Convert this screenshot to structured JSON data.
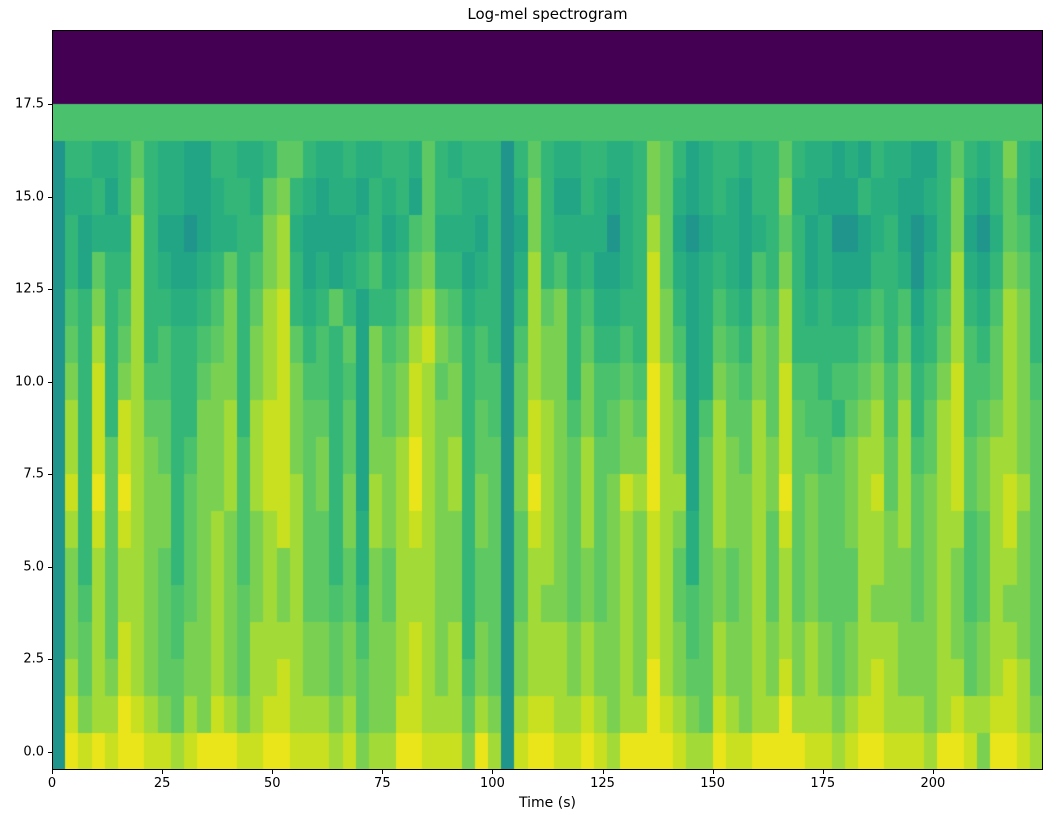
{
  "figure": {
    "background": "#ffffff",
    "text_color": "#000000"
  },
  "chart_data": {
    "type": "heatmap",
    "title": "Log-mel spectrogram",
    "xlabel": "Time (s)",
    "ylabel": "",
    "colormap": "viridis",
    "x_range": [
      0,
      225
    ],
    "y_range": [
      -0.5,
      19.5
    ],
    "x_tick_values": [
      0,
      25,
      50,
      75,
      100,
      125,
      150,
      175,
      200
    ],
    "x_tick_labels": [
      "0",
      "25",
      "50",
      "75",
      "100",
      "125",
      "150",
      "175",
      "200"
    ],
    "y_tick_values": [
      0,
      2.5,
      5,
      7.5,
      10,
      12.5,
      15,
      17.5
    ],
    "y_tick_labels": [
      "0.0",
      "2.5",
      "5.0",
      "7.5",
      "10.0",
      "12.5",
      "15.0",
      "17.5"
    ],
    "grid_on": false,
    "legend": "none",
    "n_mel_bands": 20,
    "n_time_bins": 75,
    "time_bin_seconds": 3,
    "value_encoding": "one hex digit per cell, 0 = min (dark purple) to f = max (bright yellow); rows listed from top (mel band 19) down to bottom (mel band 0)",
    "palette_low_to_high": [
      "#440154",
      "#46327e",
      "#3f4889",
      "#365c8d",
      "#2e6e8e",
      "#277f8e",
      "#1f958b",
      "#21a585",
      "#29af7f",
      "#34b679",
      "#4ac16d",
      "#5ec962",
      "#7ad151",
      "#a2da37",
      "#c8e020",
      "#e9e51a"
    ],
    "notable_features": {
      "top_two_bands": "constant minimum (dark purple), mel bands 18-19",
      "band_17": "constant mid-green value a",
      "onset_column": "dark teal column at t = 0-2 s across all active bands",
      "quiet_stripe": "dark teal vertical stripe at t = 103 s across all active bands",
      "bottom_band": "near-maximum bright yellow for most of the duration"
    },
    "rows_top_to_bottom": [
      "000000000000000000000000000000000000000000000000000000000000000000000000000",
      "000000000000000000000000000000000000000000000000000000000000000000000000000",
      "aaaaaaaaaaaaaaaaaaaaaaaaaaaaaaaaaaaaaaaaaaaaaaaaaaaaaaaaaaaaaaaaaaaaaaaaaaa",
      "699889b9887799889bb988988998b9899969b98899889cb97899899b988787988779b989c98",
      "688979c988778998bc9878879897b9988968c97798789cb87898799c887779887789c879b97",
      "697888d977678899cd877778978ab8887967c98888689db76788789b978667897679c768ba8",
      "697b99d987789b9acd978789a89bc9978968d9a897789eb878987a9c978777998689d879cb9",
      "6a9c9ad99889ac9bde989b9799acdba89969dbc9a8899ec978a98bad989889a9a79ad98adc9",
      "6b9d9bd9a99abc9cdeb9a9b7cabdecb9a96adcc9b99a9eca78ba9cbd99999ab9b89bda9bdc9",
      "6c9e9cdaa99bcc9cdecaa9a7cbcedbc9aa6bdcc9caabafdb78cbacbeaa9aabcac9aceaabdca",
      "6d9e9edbb99ccd9deecbb9b7cbcedcc9ba6bedcacabcbfdc7adbbdbebaa9bcdad9bdeabcdcb",
      "6d9ebedcb9accdadeecbc9b7ccdfdcd9bb6cedcbdbbccfdc7bdcbdcebbabcddbdabdebcddcb",
      "6e9fbfdcc9bccdadeedbc9c7dcdfdcd9cb6cfdcbdbcedfdd7bdccdcfbcbbcdebdbcdebcdedb",
      "6d9ebedcc9bcdcacdedbb9c8dcdedcc9cb6bedcbdbcdcedc8bdccdbebcbbcddcdbcddabdecb",
      "6c9dbddcb9bcdcacdcdbb9b8cbdddcc9bb6bddcbcbcdcedb8bcbcdbdbcbbbddccbcdcabddcb",
      "6cadbddcbabcdcbcdcdbbab9cbdddcc9bb6bdccbcbcdcedbabcbcdbdbcbbbdcccbcdcabdccb",
      "6cbdbedcbaccdcbddddccbcaccdedcd9cb6cdddcdccdcedcabdccdcdcdcbcdddcccdcbcddcb",
      "6dbdcedcbbccdcbddedccbcbccdedcdacb6cdddcdccdcfdcbbdccdcecdcbcdedcccddbcdedb",
      "6ecddfedcbdcedcdeedddcdbcceedddbdc6deeddedcddfedcbedcddfdddcdeedddcdeddeedc",
      "6fefeffeedefffeeffeeedecddffeeecfd6effeefedffffeddfeeffffeedeffeeedffecffed"
    ]
  }
}
